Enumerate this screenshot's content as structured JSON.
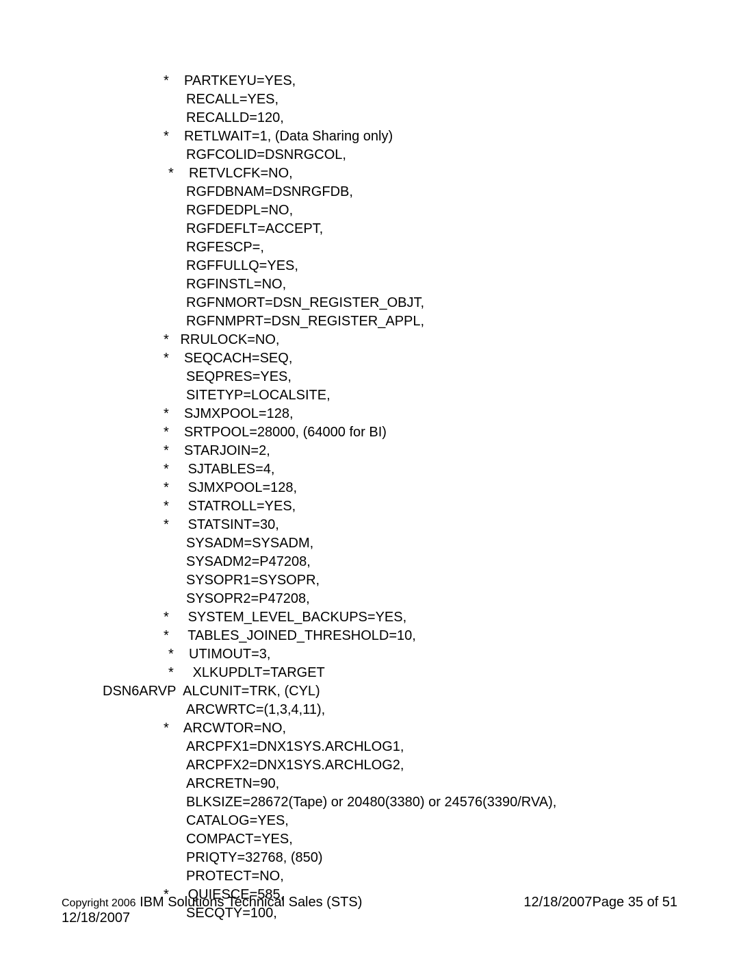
{
  "lines": [
    {
      "indent": 149,
      "star": true,
      "starGap": "    ",
      "text": "PARTKEYU=YES,"
    },
    {
      "indent": 182,
      "star": false,
      "text": "RECALL=YES,"
    },
    {
      "indent": 182,
      "star": false,
      "text": "RECALLD=120,"
    },
    {
      "indent": 149,
      "star": true,
      "starGap": "    ",
      "text": "RETLWAIT=1, (Data Sharing only)"
    },
    {
      "indent": 182,
      "star": false,
      "text": "RGFCOLID=DSNRGCOL,"
    },
    {
      "indent": 156,
      "star": true,
      "starGap": "    ",
      "text": "RETVLCFK=NO,"
    },
    {
      "indent": 182,
      "star": false,
      "text": "RGFDBNAM=DSNRGFDB,"
    },
    {
      "indent": 182,
      "star": false,
      "text": "RGFDEDPL=NO,"
    },
    {
      "indent": 182,
      "star": false,
      "text": "RGFDEFLT=ACCEPT,"
    },
    {
      "indent": 182,
      "star": false,
      "text": "RGFESCP=,"
    },
    {
      "indent": 182,
      "star": false,
      "text": "RGFFULLQ=YES,"
    },
    {
      "indent": 182,
      "star": false,
      "text": "RGFINSTL=NO,"
    },
    {
      "indent": 182,
      "star": false,
      "text": "RGFNMORT=DSN_REGISTER_OBJT,"
    },
    {
      "indent": 182,
      "star": false,
      "text": "RGFNMPRT=DSN_REGISTER_APPL,"
    },
    {
      "indent": 149,
      "star": true,
      "starGap": "   ",
      "text": "RRULOCK=NO,"
    },
    {
      "indent": 149,
      "star": true,
      "starGap": "    ",
      "text": "SEQCACH=SEQ,"
    },
    {
      "indent": 182,
      "star": false,
      "text": "SEQPRES=YES,"
    },
    {
      "indent": 182,
      "star": false,
      "text": "SITETYP=LOCALSITE,"
    },
    {
      "indent": 149,
      "star": true,
      "starGap": "    ",
      "text": "SJMXPOOL=128,"
    },
    {
      "indent": 149,
      "star": true,
      "starGap": "    ",
      "text": "SRTPOOL=28000, (64000 for BI)"
    },
    {
      "indent": 149,
      "star": true,
      "starGap": "    ",
      "text": "STARJOIN=2,"
    },
    {
      "indent": 149,
      "star": true,
      "starGap": "     ",
      "text": "SJTABLES=4,"
    },
    {
      "indent": 149,
      "star": true,
      "starGap": "     ",
      "text": "SJMXPOOL=128,"
    },
    {
      "indent": 149,
      "star": true,
      "starGap": "     ",
      "text": "STATROLL=YES,"
    },
    {
      "indent": 149,
      "star": true,
      "starGap": "     ",
      "text": "STATSINT=30,"
    },
    {
      "indent": 182,
      "star": false,
      "text": "SYSADM=SYSADM,"
    },
    {
      "indent": 182,
      "star": false,
      "text": "SYSADM2=P47208,"
    },
    {
      "indent": 182,
      "star": false,
      "text": "SYSOPR1=SYSOPR,"
    },
    {
      "indent": 182,
      "star": false,
      "text": "SYSOPR2=P47208,"
    },
    {
      "indent": 149,
      "star": true,
      "starGap": "     ",
      "text": "SYSTEM_LEVEL_BACKUPS=YES,"
    },
    {
      "indent": 149,
      "star": true,
      "starGap": "     ",
      "text": "TABLES_JOINED_THRESHOLD=10,"
    },
    {
      "indent": 156,
      "star": true,
      "starGap": "    ",
      "text": "UTIMOUT=3,"
    },
    {
      "indent": 156,
      "star": true,
      "starGap": "     ",
      "text": "XLKUPDLT=TARGET"
    },
    {
      "indent": 60,
      "star": false,
      "text": "DSN6ARVP  ALCUNIT=TRK, (CYL)"
    },
    {
      "indent": 182,
      "star": false,
      "text": "ARCWRTC=(1,3,4,11),"
    },
    {
      "indent": 149,
      "star": true,
      "starGap": "    ",
      "text": "ARCWTOR=NO,"
    },
    {
      "indent": 182,
      "star": false,
      "text": "ARCPFX1=DNX1SYS.ARCHLOG1,"
    },
    {
      "indent": 182,
      "star": false,
      "text": "ARCPFX2=DNX1SYS.ARCHLOG2,"
    },
    {
      "indent": 182,
      "star": false,
      "text": "ARCRETN=90,"
    },
    {
      "indent": 182,
      "star": false,
      "text": "BLKSIZE=28672(Tape) or 20480(3380) or 24576(3390/RVA),"
    },
    {
      "indent": 182,
      "star": false,
      "text": "CATALOG=YES,"
    },
    {
      "indent": 182,
      "star": false,
      "text": "COMPACT=YES,"
    },
    {
      "indent": 182,
      "star": false,
      "text": "PRIQTY=32768, (850)"
    },
    {
      "indent": 182,
      "star": false,
      "text": "PROTECT=NO,"
    },
    {
      "indent": 149,
      "star": true,
      "starGap": "     ",
      "text": "QUIESCE=585,"
    },
    {
      "indent": 182,
      "star": false,
      "text": "SECQTY=100,"
    }
  ],
  "footer": {
    "copyright_prefix": "Copyright 2006",
    "copyright_main": "IBM Solutions Technical Sales (STS)",
    "page_date": "12/18/2007",
    "page_info": "Page 35 of 51",
    "bottom_date": "12/18/2007"
  }
}
